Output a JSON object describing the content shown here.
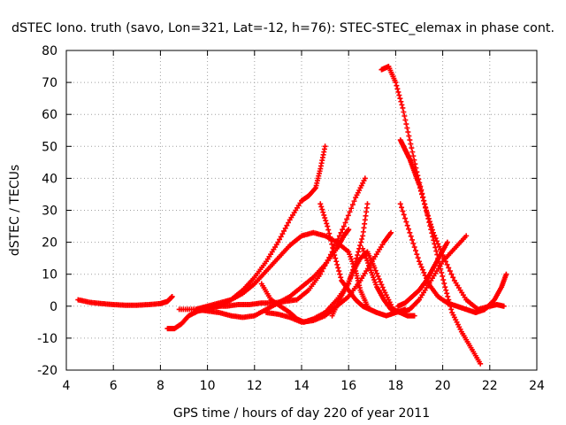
{
  "chart_data": {
    "type": "scatter",
    "title": "dSTEC Iono. truth (savo, Lon=321, Lat=-12, h=76): STEC-STEC_elemax in phase cont.",
    "xlabel": "GPS time / hours of day 220 of year 2011",
    "ylabel": "dSTEC  / TECUs",
    "xlim": [
      4,
      24
    ],
    "ylim": [
      -20,
      80
    ],
    "x_ticks": [
      "4",
      "6",
      "8",
      "10",
      "12",
      "14",
      "16",
      "18",
      "20",
      "22",
      "24"
    ],
    "y_ticks": [
      "-20",
      "-10",
      "0",
      "10",
      "20",
      "30",
      "40",
      "50",
      "60",
      "70",
      "80"
    ],
    "grid": true,
    "legend": "none",
    "marker": "plus",
    "color": "#ff0000",
    "series": [
      {
        "x": [
          4.5,
          5.0,
          5.5,
          6.0,
          6.5,
          7.0,
          7.5,
          8.0,
          8.3,
          8.5
        ],
        "y": [
          2,
          1.2,
          0.8,
          0.5,
          0.3,
          0.3,
          0.5,
          0.8,
          1.5,
          3
        ]
      },
      {
        "x": [
          8.3,
          8.6,
          8.9,
          9.2,
          9.6,
          10.0,
          10.5,
          11.0,
          11.5,
          12.0,
          12.5,
          13.0,
          13.5,
          14.0,
          14.3,
          14.6,
          14.8,
          15.0
        ],
        "y": [
          -7,
          -7,
          -5.5,
          -3,
          -1.5,
          -1,
          0,
          2,
          5,
          9,
          14,
          20,
          27,
          33,
          34.5,
          37,
          43,
          50
        ]
      },
      {
        "x": [
          8.8,
          9.5,
          10.0,
          10.5,
          11.0,
          11.5,
          12.0,
          12.5,
          13.0,
          13.5,
          14.0,
          14.5,
          15.0,
          15.5,
          15.8,
          16.0
        ],
        "y": [
          -1,
          -1,
          -1.5,
          -2,
          -3,
          -3.5,
          -3,
          -1,
          1,
          3,
          6,
          9,
          13,
          18,
          22,
          24
        ]
      },
      {
        "x": [
          9.5,
          10.0,
          10.5,
          11.0,
          11.5,
          12.0,
          12.5,
          13.0,
          13.5,
          14.0,
          14.5,
          15.0,
          15.5,
          16.0,
          16.3,
          16.5,
          16.8
        ],
        "y": [
          -1,
          0,
          1,
          2,
          4,
          7,
          11,
          15,
          19,
          22,
          23,
          22,
          20,
          17,
          11,
          5,
          0
        ]
      },
      {
        "x": [
          9.8,
          10.3,
          10.8,
          11.3,
          11.8,
          12.3,
          12.8,
          13.3,
          13.8,
          14.3,
          14.8,
          15.3,
          15.8,
          16.3,
          16.7
        ],
        "y": [
          -0.5,
          0,
          0,
          0.5,
          0.5,
          1,
          1,
          1.5,
          2,
          5,
          10,
          17,
          25,
          34,
          40
        ]
      },
      {
        "x": [
          12.3,
          12.7,
          13.1,
          13.5,
          13.8,
          14.1,
          14.5,
          15.0,
          15.5,
          16.0,
          16.3,
          16.6,
          16.8
        ],
        "y": [
          7,
          2,
          0,
          -2,
          -4,
          -5,
          -4,
          -2,
          2,
          7,
          14,
          22,
          32
        ]
      },
      {
        "x": [
          12.5,
          13.0,
          13.5,
          14.0,
          14.5,
          15.0,
          15.5,
          16.0,
          16.5,
          17.0,
          17.5,
          17.8
        ],
        "y": [
          -2,
          -2.5,
          -3.5,
          -5,
          -4.5,
          -3,
          0,
          3,
          8,
          14,
          20,
          23
        ]
      },
      {
        "x": [
          14.8,
          15.1,
          15.4,
          15.7,
          16.0,
          16.3,
          16.6,
          16.9,
          17.2,
          17.6,
          18.0,
          18.4
        ],
        "y": [
          32,
          25,
          16,
          8,
          5,
          2,
          0,
          -1,
          -2,
          -3,
          -2,
          -1
        ]
      },
      {
        "x": [
          15.3,
          15.6,
          15.9,
          16.2,
          16.5,
          16.8,
          17.1,
          17.5,
          17.9,
          18.2,
          18.5,
          18.8
        ],
        "y": [
          -3,
          2,
          6,
          11,
          15,
          17,
          12,
          5,
          -1,
          -2,
          -3,
          -3
        ]
      },
      {
        "x": [
          16.6,
          16.9,
          17.2,
          17.5,
          17.8,
          18.2,
          18.6,
          19.0,
          19.5,
          20.0,
          20.5,
          21.0
        ],
        "y": [
          18,
          12,
          6,
          2,
          -1,
          -2,
          -1,
          2,
          8,
          14,
          18,
          22
        ]
      },
      {
        "x": [
          17.4,
          17.7,
          18.0,
          18.3,
          18.6,
          18.9,
          19.2,
          19.5,
          19.8,
          20.1,
          20.4,
          20.8,
          21.2,
          21.6
        ],
        "y": [
          74,
          75,
          70,
          62,
          52,
          42,
          33,
          24,
          15,
          6,
          -2,
          -8,
          -13,
          -18
        ]
      },
      {
        "x": [
          18.2,
          18.4,
          18.6,
          18.8,
          19.0,
          19.3,
          19.6,
          20.0,
          20.5,
          21.0,
          21.5,
          22.0,
          22.3,
          22.6
        ],
        "y": [
          52,
          49,
          46,
          42,
          38,
          30,
          23,
          16,
          8,
          2,
          -1,
          0,
          0.5,
          0
        ]
      },
      {
        "x": [
          18.2,
          18.6,
          19.0,
          19.4,
          19.8,
          20.2,
          20.6,
          21.0,
          21.4,
          21.8,
          22.2,
          22.5,
          22.7
        ],
        "y": [
          32,
          23,
          14,
          7,
          3,
          1,
          0,
          -1,
          -2,
          -1,
          2,
          6,
          10
        ]
      },
      {
        "x": [
          18.1,
          18.4,
          18.7,
          19.0,
          19.3,
          19.6,
          19.9,
          20.2
        ],
        "y": [
          0,
          1,
          3,
          5,
          8,
          12,
          16,
          20
        ]
      }
    ]
  }
}
